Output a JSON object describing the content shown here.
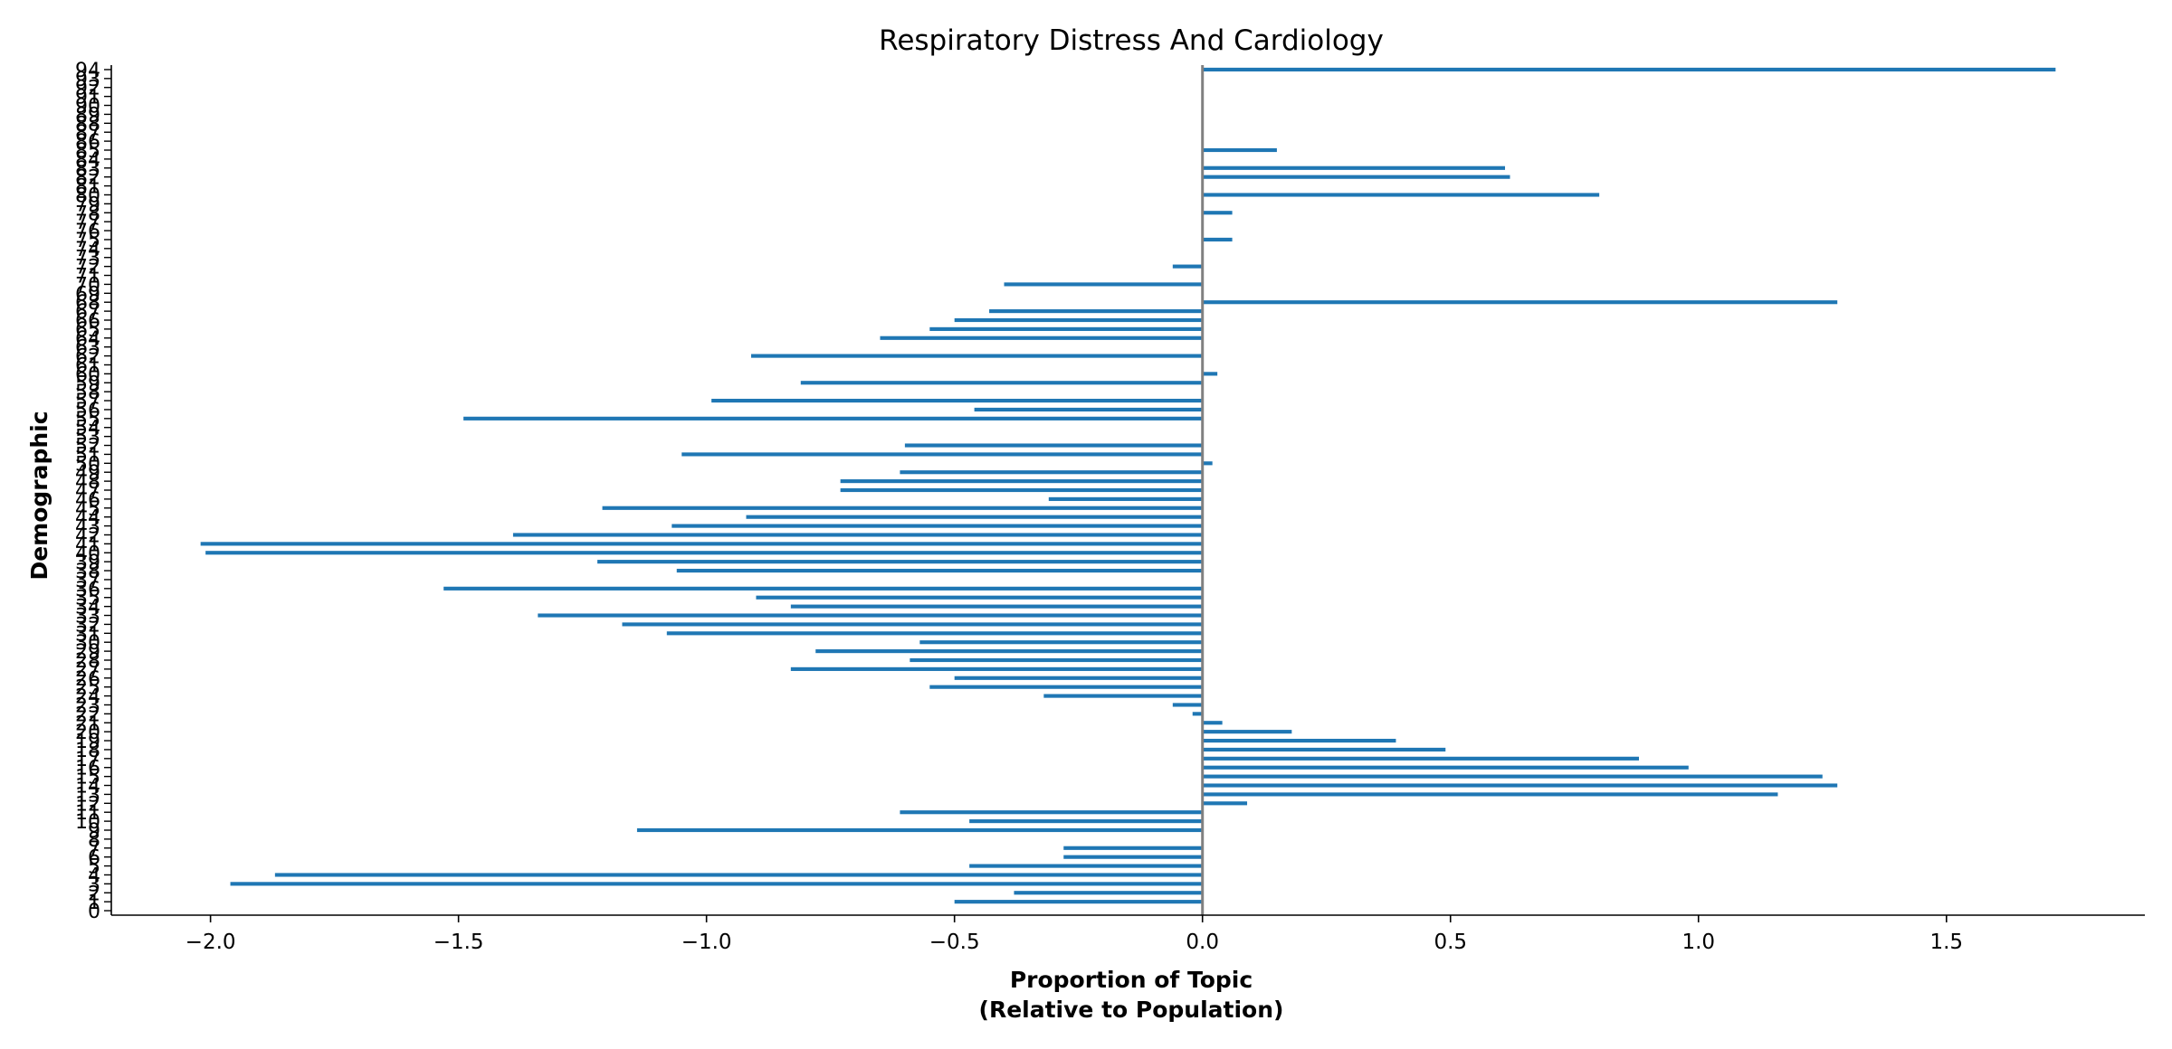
{
  "chart_data": {
    "type": "bar",
    "orientation": "horizontal",
    "title": "Respiratory Distress And Cardiology",
    "xlabel_line1": "Proportion of Topic",
    "xlabel_line2": "(Relative to Population)",
    "ylabel": "Demographic",
    "xlim": [
      -2.2,
      1.9
    ],
    "ylim": [
      -0.5,
      94.5
    ],
    "xticks": [
      -2.0,
      -1.5,
      -1.0,
      -0.5,
      0.0,
      0.5,
      1.0,
      1.5
    ],
    "xtick_labels": [
      "−2.0",
      "−1.5",
      "−1.0",
      "−0.5",
      "0.0",
      "0.5",
      "1.0",
      "1.5"
    ],
    "bar_color": "#1f77b4",
    "zero_line_color": "#808080",
    "grid": false,
    "categories": [
      0,
      1,
      2,
      3,
      4,
      5,
      6,
      7,
      8,
      9,
      10,
      11,
      12,
      13,
      14,
      15,
      16,
      17,
      18,
      19,
      20,
      21,
      22,
      23,
      24,
      25,
      26,
      27,
      28,
      29,
      30,
      31,
      32,
      33,
      34,
      35,
      36,
      37,
      38,
      39,
      40,
      41,
      42,
      43,
      44,
      45,
      46,
      47,
      48,
      49,
      50,
      51,
      52,
      53,
      54,
      55,
      56,
      57,
      58,
      59,
      60,
      61,
      62,
      63,
      64,
      65,
      66,
      67,
      68,
      69,
      70,
      71,
      72,
      73,
      74,
      75,
      76,
      77,
      78,
      79,
      80,
      81,
      82,
      83,
      84,
      85,
      86,
      87,
      88,
      89,
      90,
      91,
      92,
      93,
      94
    ],
    "values": [
      0,
      -0.5,
      -0.38,
      -1.96,
      -1.87,
      -0.47,
      -0.28,
      -0.28,
      0,
      -1.14,
      -0.47,
      -0.61,
      0.09,
      1.16,
      1.28,
      1.25,
      0.98,
      0.88,
      0.49,
      0.39,
      0.18,
      0.04,
      -0.02,
      -0.06,
      -0.32,
      -0.55,
      -0.5,
      -0.83,
      -0.59,
      -0.78,
      -0.57,
      -1.08,
      -1.17,
      -1.34,
      -0.83,
      -0.9,
      -1.53,
      0,
      -1.06,
      -1.22,
      -2.01,
      -2.02,
      -1.39,
      -1.07,
      -0.92,
      -1.21,
      -0.31,
      -0.73,
      -0.73,
      -0.61,
      0.02,
      -1.05,
      -0.6,
      0,
      0,
      -1.49,
      -0.46,
      -0.99,
      0,
      -0.81,
      0.03,
      0,
      -0.91,
      0,
      -0.65,
      -0.55,
      -0.5,
      -0.43,
      1.28,
      0,
      -0.4,
      0,
      -0.06,
      0,
      0,
      0.06,
      0,
      0,
      0.06,
      0,
      0.8,
      0,
      0.62,
      0.61,
      0,
      0.15,
      0,
      0,
      0,
      0,
      0,
      0,
      0,
      0,
      1.72
    ]
  }
}
